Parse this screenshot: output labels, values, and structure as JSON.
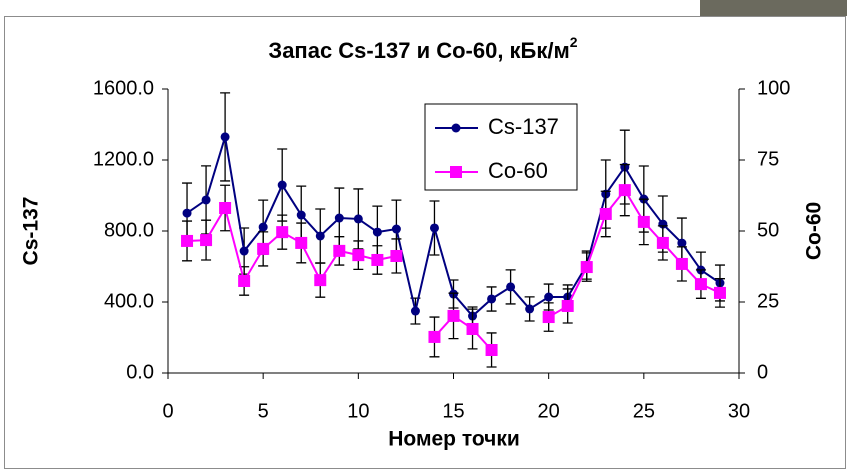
{
  "chart_data": {
    "type": "line",
    "title": "Запас Cs-137 и Co-60, кБк/м",
    "title_superscript": "2",
    "xlabel": "Номер точки",
    "ylabel": "Cs-137",
    "y2label": "Co-60",
    "x": [
      1,
      2,
      3,
      4,
      5,
      6,
      7,
      8,
      9,
      10,
      11,
      12,
      13,
      14,
      15,
      16,
      17,
      18,
      19,
      20,
      21,
      22,
      23,
      24,
      25,
      26,
      27,
      28,
      29
    ],
    "xlim": [
      0,
      30
    ],
    "xticks": [
      0,
      5,
      10,
      15,
      20,
      25,
      30
    ],
    "ylim": [
      0,
      1600
    ],
    "yticks": [
      {
        "value": 0,
        "label": "0.0"
      },
      {
        "value": 400,
        "label": "400.0"
      },
      {
        "value": 800,
        "label": "800.0"
      },
      {
        "value": 1200,
        "label": "1200.0"
      },
      {
        "value": 1600,
        "label": "1600.0"
      }
    ],
    "y2lim": [
      0,
      100
    ],
    "y2ticks": [
      0,
      25,
      50,
      75,
      100
    ],
    "legend_position": "top-center",
    "series": [
      {
        "name": "Cs-137",
        "color": "#000080",
        "marker": "circle",
        "values": [
          901,
          975,
          1330,
          687,
          822,
          1059,
          890,
          772,
          873,
          868,
          794,
          811,
          349,
          817,
          445,
          321,
          417,
          485,
          361,
          428,
          428,
          608,
          1008,
          1160,
          980,
          839,
          732,
          580,
          507
        ],
        "errors": [
          169,
          192,
          248,
          130,
          152,
          203,
          163,
          152,
          169,
          169,
          146,
          163,
          73,
          152,
          79,
          51,
          68,
          96,
          68,
          73,
          68,
          79,
          192,
          208,
          186,
          158,
          141,
          101,
          101
        ]
      },
      {
        "name": "Co-60",
        "color": "#ff00ff",
        "marker": "square",
        "axis": "y2",
        "values": [
          46.5,
          46.8,
          58.1,
          32.4,
          43.7,
          49.6,
          45.8,
          32.7,
          43.0,
          41.5,
          39.8,
          41.2,
          null,
          12.7,
          20.1,
          15.5,
          8.1,
          null,
          null,
          19.7,
          23.6,
          37.3,
          56.0,
          64.4,
          53.2,
          45.8,
          38.4,
          31.3,
          28.2
        ],
        "errors": [
          7,
          7,
          8,
          5,
          6,
          6,
          7,
          6,
          5,
          5,
          5,
          6,
          null,
          7,
          8,
          7,
          6,
          null,
          null,
          5,
          6,
          5,
          8,
          9,
          8,
          6,
          6,
          5,
          5
        ]
      }
    ]
  }
}
